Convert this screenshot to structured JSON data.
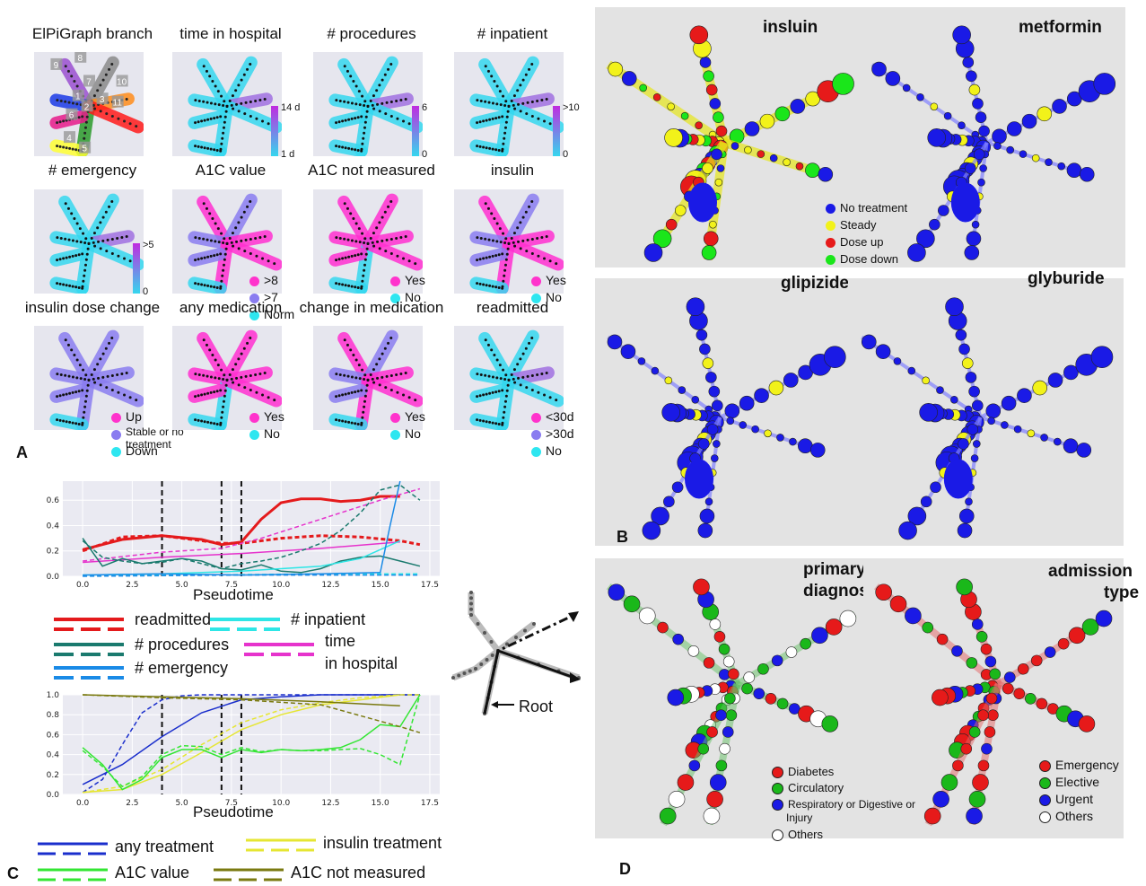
{
  "panelA": {
    "letter": "A",
    "panels": [
      {
        "title": "ElPiGraph branch",
        "style": "branch",
        "legend": []
      },
      {
        "title": "time in hospital",
        "style": "cyan",
        "cbar": {
          "top": "14 d",
          "bottom": "1 d"
        }
      },
      {
        "title": "# procedures",
        "style": "cyan",
        "cbar": {
          "top": "6",
          "bottom": "0"
        }
      },
      {
        "title": "# inpatient",
        "style": "cyan",
        "cbar": {
          "top": ">10",
          "bottom": "0"
        }
      },
      {
        "title": "# emergency",
        "style": "cyan",
        "cbar": {
          "top": ">5",
          "bottom": "0"
        }
      },
      {
        "title": "A1C value",
        "style": "mixed",
        "legend": [
          {
            "label": ">8",
            "color": "#ff33cc"
          },
          {
            "label": ">7",
            "color": "#8a7cf0"
          },
          {
            "label": "Norm",
            "color": "#2ee6f0"
          }
        ]
      },
      {
        "title": "A1C not measured",
        "style": "magenta",
        "legend": [
          {
            "label": "Yes",
            "color": "#ff33cc"
          },
          {
            "label": "No",
            "color": "#2ee6f0"
          }
        ]
      },
      {
        "title": "insulin",
        "style": "mixed",
        "legend": [
          {
            "label": "Yes",
            "color": "#ff33cc"
          },
          {
            "label": "No",
            "color": "#2ee6f0"
          }
        ]
      },
      {
        "title": "insulin dose change",
        "style": "purple",
        "legend": [
          {
            "label": "Up",
            "color": "#ff33cc"
          },
          {
            "label": "Stable or no treatment",
            "color": "#8a7cf0"
          },
          {
            "label": "Down",
            "color": "#2ee6f0"
          }
        ]
      },
      {
        "title": "any medication",
        "style": "magenta",
        "legend": [
          {
            "label": "Yes",
            "color": "#ff33cc"
          },
          {
            "label": "No",
            "color": "#2ee6f0"
          }
        ]
      },
      {
        "title": "change in medication",
        "style": "mixed",
        "legend": [
          {
            "label": "Yes",
            "color": "#ff33cc"
          },
          {
            "label": "No",
            "color": "#2ee6f0"
          }
        ]
      },
      {
        "title": "readmitted",
        "style": "cyan",
        "legend": [
          {
            "label": "<30d",
            "color": "#ff33cc"
          },
          {
            "label": ">30d",
            "color": "#8a7cf0"
          },
          {
            "label": "No",
            "color": "#2ee6f0"
          }
        ]
      }
    ],
    "branch_numbers": [
      "9",
      "8",
      "7",
      "10",
      "6",
      "2",
      "3",
      "1",
      "11",
      "4",
      "5"
    ]
  },
  "panelB": {
    "letter": "B",
    "panels": [
      {
        "title": "insluin"
      },
      {
        "title": "metformin"
      },
      {
        "title": "glipizide"
      },
      {
        "title": "glyburide"
      }
    ],
    "legend": [
      {
        "label": "No treatment",
        "color": "#1a1ae6"
      },
      {
        "label": "Steady",
        "color": "#f2f21a"
      },
      {
        "label": "Dose up",
        "color": "#e61a1a"
      },
      {
        "label": "Dose down",
        "color": "#1ae61a"
      }
    ]
  },
  "panelC": {
    "letter": "C",
    "root_label": "Root",
    "legend_top": [
      {
        "label": "readmitted",
        "color": "#e41a1c"
      },
      {
        "label": "# inpatient",
        "color": "#2ee6e6"
      },
      {
        "label": "# procedures",
        "color": "#1a7a6e"
      },
      {
        "label": "time in hospital",
        "label1": "time",
        "label2": "in hospital",
        "color": "#e633cc"
      },
      {
        "label": "# emergency",
        "color": "#1a8ae6"
      }
    ],
    "legend_bottom": [
      {
        "label": "any treatment",
        "color": "#1a2ecc"
      },
      {
        "label": "insulin treatment",
        "color": "#e6e633"
      },
      {
        "label": "A1C value",
        "color": "#33e633"
      },
      {
        "label": "A1C not measured",
        "color": "#7a7a10"
      }
    ]
  },
  "panelD": {
    "letter": "D",
    "panels": [
      {
        "title1": "primary",
        "title2": "diagnosis"
      },
      {
        "title1": "admission",
        "title2": "type"
      }
    ],
    "legend_left": [
      {
        "label": "Diabetes",
        "color": "#e61a1a"
      },
      {
        "label": "Circulatory",
        "color": "#1ab81a"
      },
      {
        "label": "Respiratory or Digestive or Injury",
        "label1": "Respiratory or Digestive or",
        "label2": "Injury",
        "color": "#1a1ae6"
      },
      {
        "label": "Others",
        "color": "#ffffff"
      }
    ],
    "legend_right": [
      {
        "label": "Emergency",
        "color": "#e61a1a"
      },
      {
        "label": "Elective",
        "color": "#1ab81a"
      },
      {
        "label": "Urgent",
        "color": "#1a1ae6"
      },
      {
        "label": "Others",
        "color": "#ffffff"
      }
    ]
  },
  "chart_data": [
    {
      "type": "line",
      "xlabel": "Pseudotime",
      "ylabel": "",
      "xlim": [
        -1,
        18
      ],
      "ylim": [
        0,
        0.75
      ],
      "xticks": [
        "0.0",
        "2.5",
        "5.0",
        "7.5",
        "10.0",
        "12.5",
        "15.0",
        "17.5"
      ],
      "yticks": [
        "0.0",
        "0.2",
        "0.4",
        "0.6"
      ],
      "vlines": [
        4,
        7,
        8
      ],
      "series": [
        {
          "name": "readmitted",
          "style": "solid",
          "color": "#e41a1c",
          "x": [
            0,
            2,
            4,
            6,
            7,
            8,
            9,
            10,
            11,
            12,
            13,
            14,
            15,
            16
          ],
          "y": [
            0.21,
            0.29,
            0.32,
            0.29,
            0.25,
            0.27,
            0.45,
            0.58,
            0.61,
            0.61,
            0.59,
            0.6,
            0.63,
            0.63
          ]
        },
        {
          "name": "readmitted",
          "style": "dashed",
          "color": "#e41a1c",
          "x": [
            0,
            2,
            4,
            6,
            7,
            8,
            10,
            12,
            14,
            16,
            17
          ],
          "y": [
            0.2,
            0.31,
            0.32,
            0.28,
            0.26,
            0.26,
            0.3,
            0.32,
            0.31,
            0.28,
            0.25
          ]
        },
        {
          "name": "time in hospital",
          "style": "solid",
          "color": "#e633cc",
          "x": [
            0,
            4,
            8,
            12,
            16
          ],
          "y": [
            0.11,
            0.15,
            0.18,
            0.22,
            0.27
          ]
        },
        {
          "name": "time in hospital",
          "style": "dashed",
          "color": "#e633cc",
          "x": [
            0,
            4,
            7,
            9,
            11,
            13,
            15,
            17
          ],
          "y": [
            0.12,
            0.19,
            0.22,
            0.3,
            0.4,
            0.5,
            0.6,
            0.69
          ]
        },
        {
          "name": "# procedures",
          "style": "solid",
          "color": "#1a7a6e",
          "x": [
            0,
            1,
            2,
            3,
            4,
            5,
            6,
            7,
            8,
            9,
            10,
            11,
            12,
            13,
            14,
            15,
            16,
            17
          ],
          "y": [
            0.3,
            0.08,
            0.14,
            0.1,
            0.12,
            0.14,
            0.12,
            0.06,
            0.05,
            0.09,
            0.04,
            0.03,
            0.06,
            0.12,
            0.15,
            0.16,
            0.12,
            0.08
          ]
        },
        {
          "name": "# procedures",
          "style": "dashed",
          "color": "#1a7a6e",
          "x": [
            0,
            1,
            2,
            3,
            4,
            5,
            6,
            7,
            8,
            9,
            10,
            11,
            12,
            13,
            14,
            15,
            16,
            17
          ],
          "y": [
            0.28,
            0.15,
            0.12,
            0.1,
            0.11,
            0.14,
            0.1,
            0.06,
            0.1,
            0.12,
            0.15,
            0.2,
            0.26,
            0.36,
            0.5,
            0.68,
            0.72,
            0.6
          ]
        },
        {
          "name": "# inpatient",
          "style": "solid",
          "color": "#2ee6e6",
          "x": [
            0,
            4,
            8,
            12,
            14,
            16
          ],
          "y": [
            0.01,
            0.02,
            0.04,
            0.08,
            0.14,
            0.28
          ]
        },
        {
          "name": "# inpatient",
          "style": "dashed",
          "color": "#2ee6e6",
          "x": [
            0,
            6,
            12,
            17
          ],
          "y": [
            0.01,
            0.01,
            0.02,
            0.02
          ]
        },
        {
          "name": "# emergency",
          "style": "solid",
          "color": "#1a8ae6",
          "x": [
            0,
            4,
            8,
            12,
            15,
            15.5,
            16
          ],
          "y": [
            0.01,
            0.02,
            0.01,
            0.02,
            0.03,
            0.4,
            0.75
          ]
        },
        {
          "name": "# emergency",
          "style": "dashed",
          "color": "#1a8ae6",
          "x": [
            0,
            8,
            17
          ],
          "y": [
            0.0,
            0.01,
            0.01
          ]
        }
      ]
    },
    {
      "type": "line",
      "xlabel": "Pseudotime",
      "ylabel": "",
      "xlim": [
        -1,
        18
      ],
      "ylim": [
        0,
        1.0
      ],
      "xticks": [
        "0.0",
        "2.5",
        "5.0",
        "7.5",
        "10.0",
        "12.5",
        "15.0",
        "17.5"
      ],
      "yticks": [
        "0.0",
        "0.2",
        "0.4",
        "0.6",
        "0.8",
        "1.0"
      ],
      "vlines": [
        4,
        7,
        8
      ],
      "series": [
        {
          "name": "any treatment",
          "style": "solid",
          "color": "#1a2ecc",
          "x": [
            0,
            2,
            4,
            6,
            8,
            10,
            12,
            14,
            16,
            17
          ],
          "y": [
            0.1,
            0.3,
            0.58,
            0.82,
            0.95,
            0.98,
            1.0,
            1.0,
            1.0,
            1.0
          ]
        },
        {
          "name": "any treatment",
          "style": "dashed",
          "color": "#1a2ecc",
          "x": [
            0,
            1,
            2,
            3,
            4,
            5,
            6,
            8,
            10,
            17
          ],
          "y": [
            0.02,
            0.15,
            0.5,
            0.82,
            0.95,
            0.99,
            1.0,
            1.0,
            1.0,
            1.0
          ]
        },
        {
          "name": "insulin treatment",
          "style": "solid",
          "color": "#e6e633",
          "x": [
            0,
            2,
            4,
            6,
            8,
            10,
            12,
            14,
            16
          ],
          "y": [
            0.02,
            0.05,
            0.2,
            0.42,
            0.65,
            0.8,
            0.9,
            0.95,
            1.0
          ]
        },
        {
          "name": "insulin treatment",
          "style": "dashed",
          "color": "#e6e633",
          "x": [
            0,
            2,
            4,
            6,
            8,
            10,
            12,
            14,
            16,
            17
          ],
          "y": [
            0.02,
            0.08,
            0.25,
            0.5,
            0.72,
            0.85,
            0.92,
            0.97,
            1.0,
            1.0
          ]
        },
        {
          "name": "A1C value",
          "style": "solid",
          "color": "#33e633",
          "x": [
            0,
            1,
            2,
            3,
            4,
            5,
            6,
            7,
            8,
            9,
            10,
            11,
            12,
            13,
            14,
            15,
            16,
            17
          ],
          "y": [
            0.47,
            0.3,
            0.05,
            0.15,
            0.37,
            0.45,
            0.45,
            0.37,
            0.45,
            0.42,
            0.45,
            0.44,
            0.45,
            0.47,
            0.55,
            0.7,
            0.68,
            1.0
          ]
        },
        {
          "name": "A1C value",
          "style": "dashed",
          "color": "#33e633",
          "x": [
            0,
            1,
            2,
            3,
            4,
            5,
            6,
            7,
            8,
            9,
            10,
            11,
            12,
            13,
            14,
            15,
            16,
            17
          ],
          "y": [
            0.44,
            0.28,
            0.08,
            0.18,
            0.4,
            0.49,
            0.48,
            0.4,
            0.47,
            0.43,
            0.45,
            0.44,
            0.44,
            0.45,
            0.46,
            0.4,
            0.3,
            1.0
          ]
        },
        {
          "name": "A1C not measured",
          "style": "solid",
          "color": "#7a7a10",
          "x": [
            0,
            4,
            8,
            12,
            16
          ],
          "y": [
            1.0,
            0.98,
            0.96,
            0.93,
            0.89
          ]
        },
        {
          "name": "A1C not measured",
          "style": "dashed",
          "color": "#7a7a10",
          "x": [
            0,
            4,
            8,
            12,
            16,
            17
          ],
          "y": [
            1.0,
            0.97,
            0.95,
            0.9,
            0.68,
            0.62
          ]
        }
      ]
    }
  ]
}
